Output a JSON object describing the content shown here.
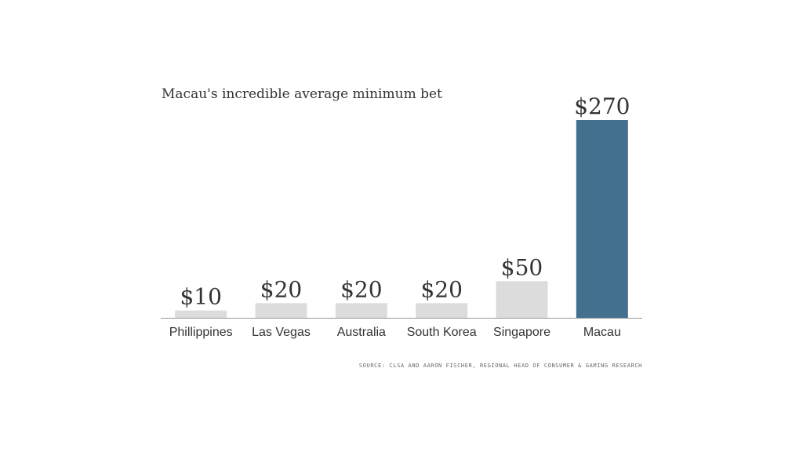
{
  "chart_data": {
    "type": "bar",
    "title": "Macau's incredible average minimum bet",
    "categories": [
      "Phillippines",
      "Las Vegas",
      "Australia",
      "South Korea",
      "Singapore",
      "Macau"
    ],
    "values": [
      10,
      20,
      20,
      20,
      50,
      270
    ],
    "value_labels": [
      "$10",
      "$20",
      "$20",
      "$20",
      "$50",
      "$270"
    ],
    "ylim": [
      0,
      270
    ],
    "xlabel": "",
    "ylabel": "",
    "grid": false,
    "legend": "none",
    "colors": {
      "default_bar": "#dcdcdc",
      "highlight_bar": "#43708f",
      "axis": "#999999",
      "value_label": "#333333",
      "tick_label": "#333333"
    },
    "highlight_index": 5
  },
  "source": "SOURCE: CLSA AND AARON FISCHER, REGIONAL HEAD OF CONSUMER & GAMING RESEARCH"
}
